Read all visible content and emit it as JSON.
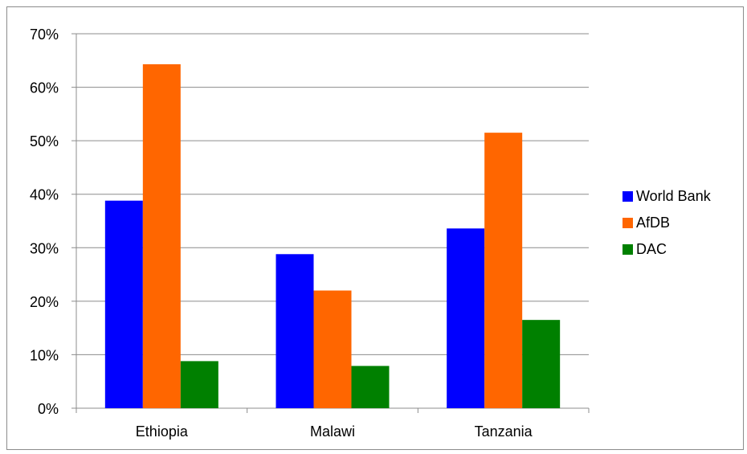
{
  "chart_data": {
    "type": "bar",
    "categories": [
      "Ethiopia",
      "Malawi",
      "Tanzania"
    ],
    "series": [
      {
        "name": "World Bank",
        "color": "#0000ff",
        "values": [
          38.8,
          28.8,
          33.6
        ]
      },
      {
        "name": "AfDB",
        "color": "#ff6600",
        "values": [
          64.3,
          22.0,
          51.5
        ]
      },
      {
        "name": "DAC",
        "color": "#008000",
        "values": [
          8.8,
          7.9,
          16.5
        ]
      }
    ],
    "y_ticks": [
      "0%",
      "10%",
      "20%",
      "30%",
      "40%",
      "50%",
      "60%",
      "70%"
    ],
    "ylim": [
      0,
      70
    ],
    "y_unit": "%",
    "title": "",
    "xlabel": "",
    "ylabel": "",
    "grid": true,
    "legend_position": "right"
  }
}
